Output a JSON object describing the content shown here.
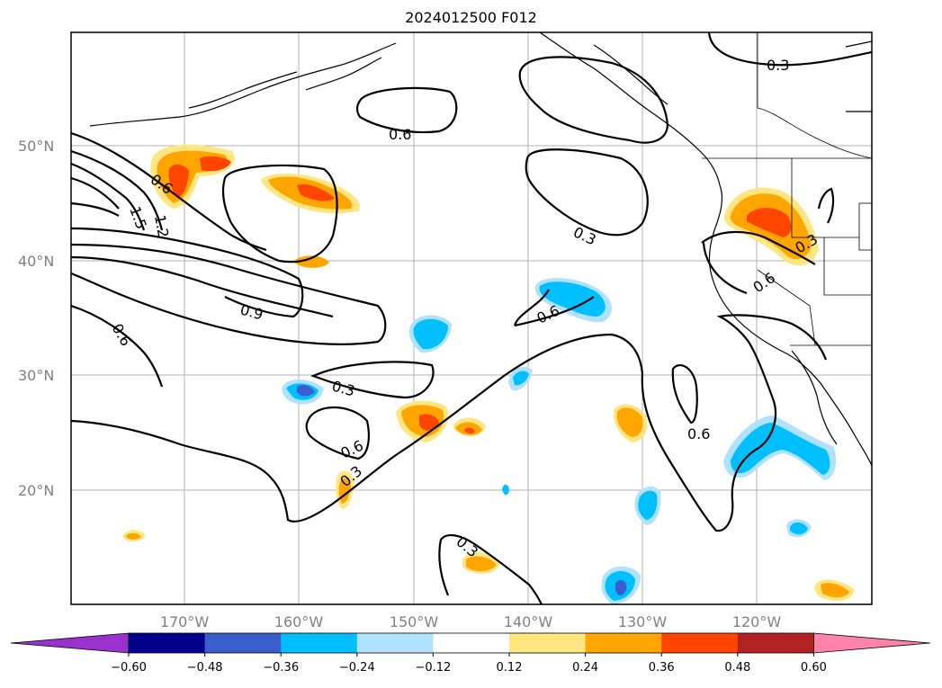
{
  "title": "2024012500 F012",
  "lat_labels": [
    "50°N",
    "40°N",
    "30°N",
    "20°N"
  ],
  "lon_labels": [
    "170°W",
    "160°W",
    "150°W",
    "140°W",
    "130°W",
    "120°W"
  ],
  "colorbar": {
    "ticks": [
      "−0.60",
      "−0.48",
      "−0.36",
      "−0.24",
      "−0.12",
      "0.12",
      "0.24",
      "0.36",
      "0.48",
      "0.60"
    ],
    "colors": [
      "#9932cc",
      "#00008b",
      "#3a5fcd",
      "#00bfff",
      "#b0e2ff",
      "#ffffff",
      "#ffe680",
      "#ffa500",
      "#ff4500",
      "#b22222",
      "#ff82ab"
    ]
  },
  "contour_labels": [
    "0.3",
    "0.6",
    "0.3",
    "0.6",
    "1.5",
    "1.2",
    "0.9",
    "0.6",
    "0.3",
    "0.6",
    "0.3",
    "0.6",
    "0.6",
    "0.3",
    "0.6",
    "0.3"
  ]
}
